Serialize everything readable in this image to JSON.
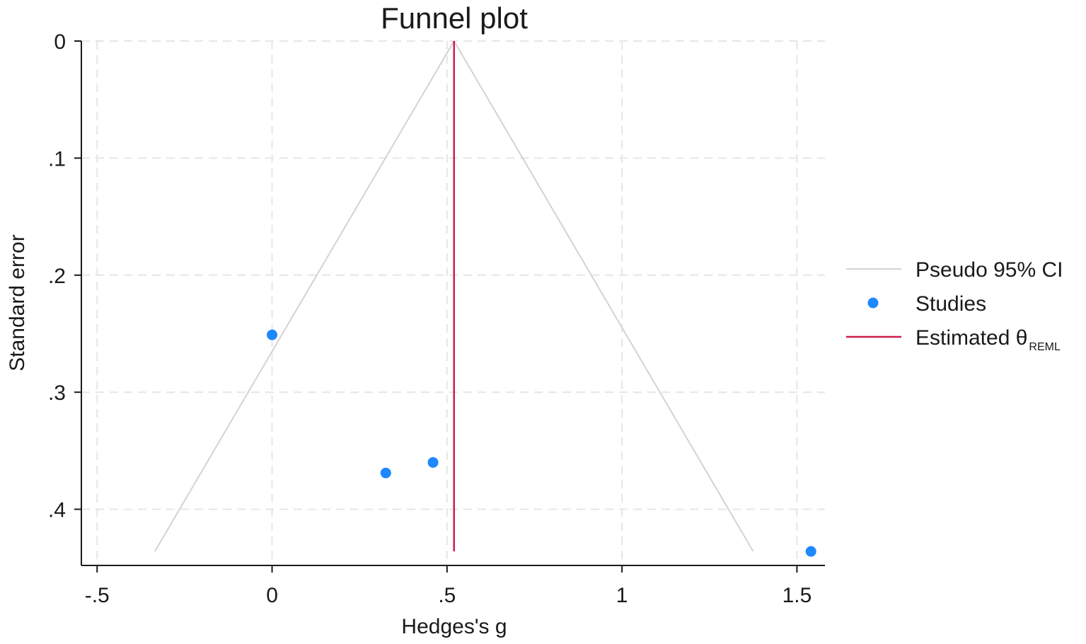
{
  "chart_data": {
    "type": "scatter",
    "title": "Funnel plot",
    "xlabel": "Hedges's g",
    "ylabel": "Standard error",
    "xlim": [
      -0.545,
      1.58
    ],
    "ylim": [
      0,
      0.448
    ],
    "y_reversed": true,
    "x_ticks": [
      {
        "value": -0.5,
        "label": "-.5"
      },
      {
        "value": 0,
        "label": "0"
      },
      {
        "value": 0.5,
        "label": ".5"
      },
      {
        "value": 1,
        "label": "1"
      },
      {
        "value": 1.5,
        "label": "1.5"
      }
    ],
    "y_ticks": [
      {
        "value": 0,
        "label": "0"
      },
      {
        "value": 0.1,
        "label": ".1"
      },
      {
        "value": 0.2,
        "label": ".2"
      },
      {
        "value": 0.3,
        "label": ".3"
      },
      {
        "value": 0.4,
        "label": ".4"
      }
    ],
    "grid": true,
    "legend_position": "right",
    "estimate": 0.52,
    "max_se": 0.436,
    "series": [
      {
        "name": "Pseudo 95% CI",
        "kind": "line",
        "color": "#d3d3d3",
        "points": [
          {
            "x": -0.335,
            "y": 0.436
          },
          {
            "x": 0.52,
            "y": 0
          },
          {
            "x": 1.375,
            "y": 0.436
          }
        ]
      },
      {
        "name": "Studies",
        "kind": "scatter",
        "color": "#1e88ff",
        "points": [
          {
            "x": 0.0,
            "y": 0.251
          },
          {
            "x": 0.325,
            "y": 0.369
          },
          {
            "x": 0.46,
            "y": 0.36
          },
          {
            "x": 1.54,
            "y": 0.436
          }
        ]
      },
      {
        "name": "Estimated θ",
        "name_subscript": "REML",
        "kind": "vline",
        "color": "#d01c4b",
        "x": 0.52,
        "y_range": [
          0,
          0.436
        ]
      }
    ]
  }
}
